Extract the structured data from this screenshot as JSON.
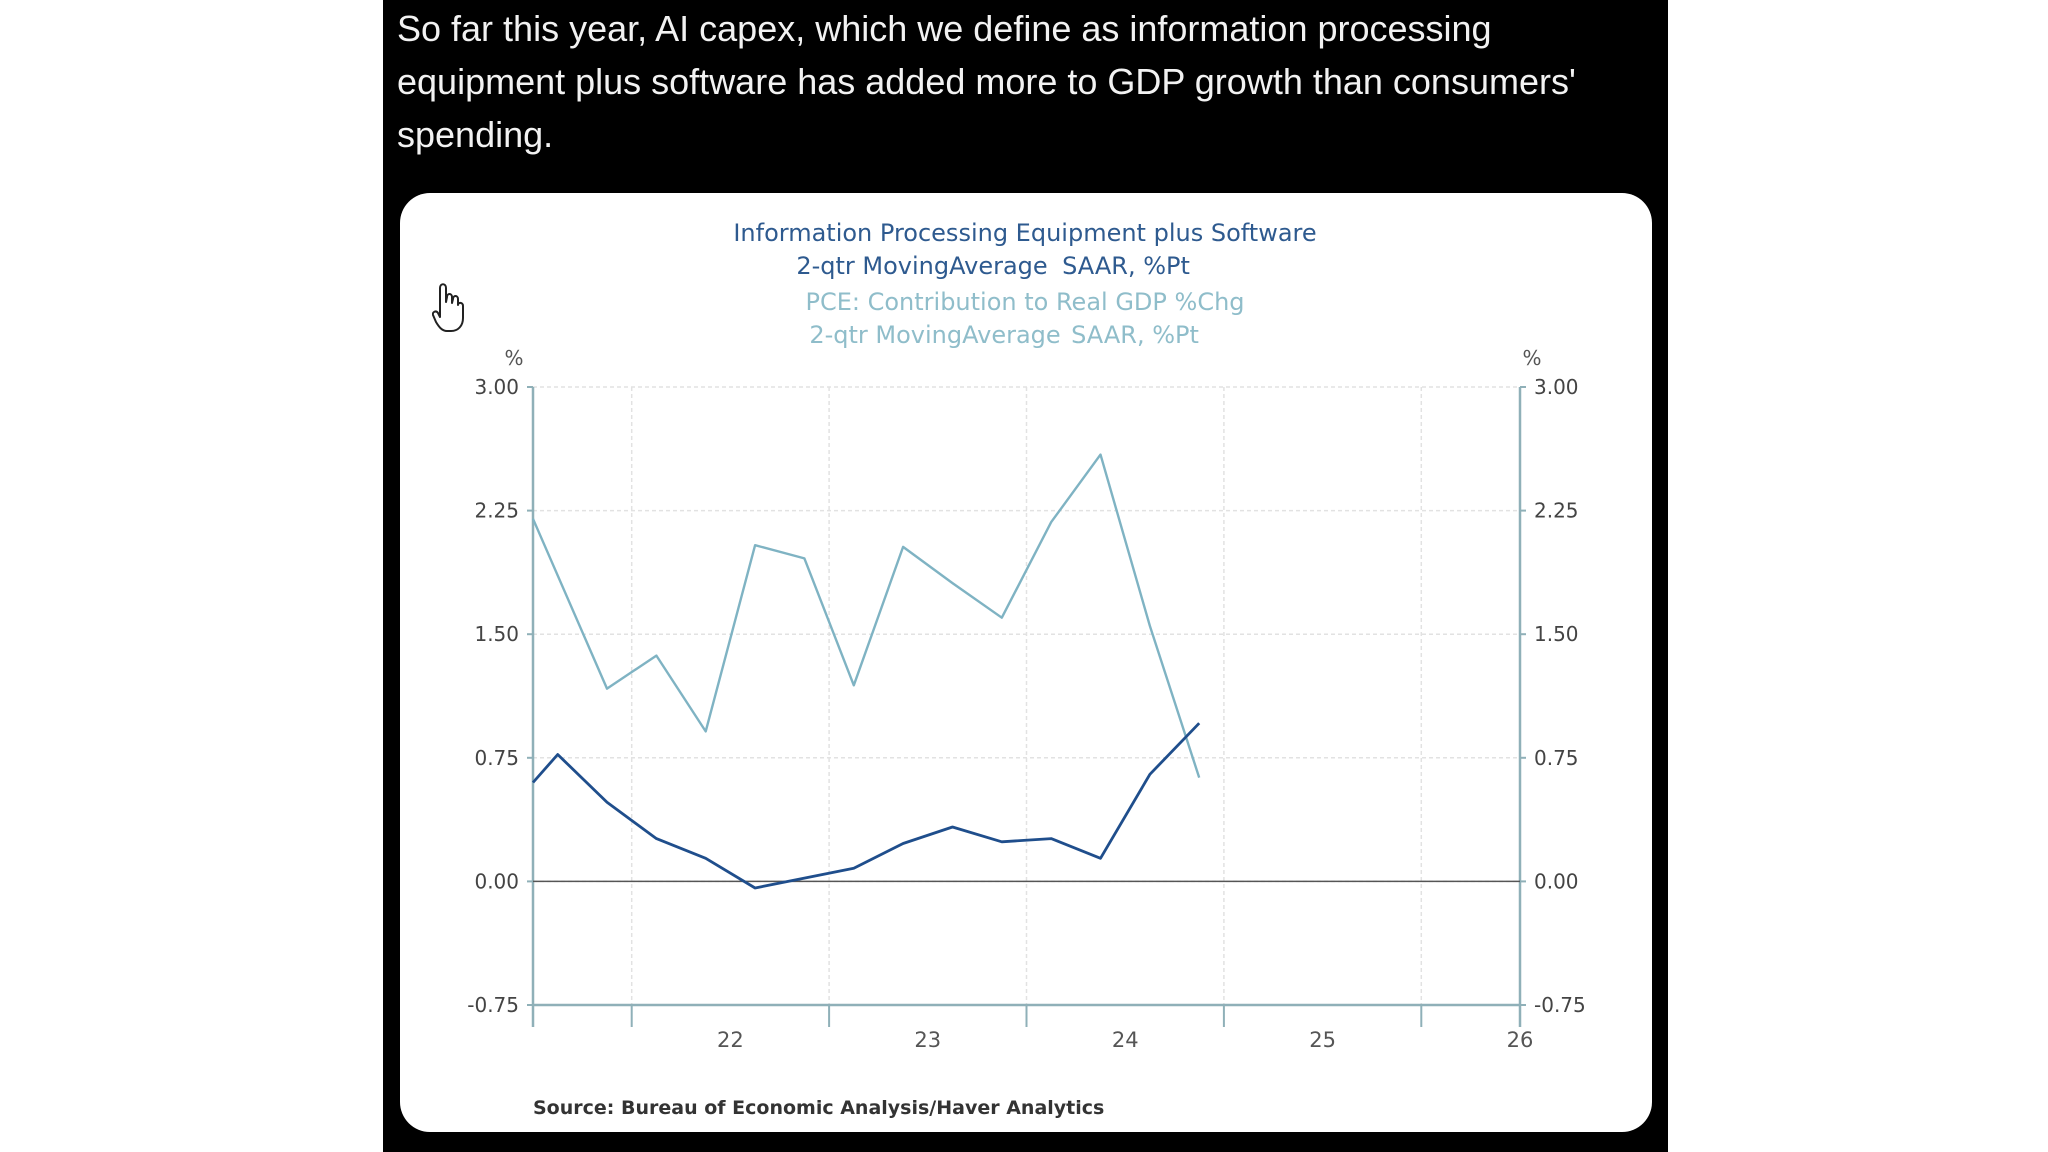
{
  "tweet": {
    "text": "So far this year, AI capex, which we define as information processing equipment plus software has added more to GDP growth than consumers' spending."
  },
  "colors": {
    "background": "#000000",
    "card": "#ffffff",
    "text": "#f2f2f2",
    "series_capex": "#1f4e8c",
    "series_pce": "#7fb3c3",
    "axis": "#8fb0b8"
  },
  "icons": {
    "cursor": "hand-pointer-icon"
  },
  "chart_data": {
    "type": "line",
    "title": "Information Processing Equipment plus Software",
    "title_sub_left": "2-qtr MovingAverage",
    "title_sub_right": "SAAR, %Pt",
    "title2": "PCE: Contribution to Real GDP %Chg",
    "title2_sub_left": "2-qtr MovingAverage",
    "title2_sub_right": "SAAR, %Pt",
    "ylabel_left": "%",
    "ylabel_right": "%",
    "source": "Source:  Bureau of Economic Analysis/Haver Analytics",
    "x_ticklabels": [
      "22",
      "23",
      "24",
      "25",
      "26"
    ],
    "xlim": [
      2021.5,
      2026.5
    ],
    "ylim": [
      -0.75,
      3.0
    ],
    "y_ticks": [
      3.0,
      2.25,
      1.5,
      0.75,
      0.0,
      -0.75
    ],
    "y_ticklabels": [
      "3.00",
      "2.25",
      "1.50",
      "0.75",
      "0.00",
      "-0.75"
    ],
    "grid": true,
    "series": [
      {
        "name": "Information Processing Equipment plus Software",
        "color": "#1f4e8c",
        "x": [
          2021.5,
          2021.625,
          2021.875,
          2022.125,
          2022.375,
          2022.625,
          2022.875,
          2023.125,
          2023.375,
          2023.625,
          2023.875,
          2024.125,
          2024.375,
          2024.625,
          2024.875
        ],
        "values": [
          0.6,
          0.77,
          0.48,
          0.26,
          0.14,
          -0.04,
          0.02,
          0.08,
          0.23,
          0.33,
          0.24,
          0.26,
          0.14,
          0.65,
          0.96
        ]
      },
      {
        "name": "PCE: Contribution to Real GDP %Chg",
        "color": "#7fb3c3",
        "x": [
          2021.5,
          2021.875,
          2022.125,
          2022.375,
          2022.625,
          2022.875,
          2023.125,
          2023.375,
          2023.625,
          2023.875,
          2024.125,
          2024.375,
          2024.625,
          2024.875
        ],
        "values": [
          2.2,
          1.17,
          1.37,
          0.91,
          2.04,
          1.96,
          1.19,
          2.03,
          1.81,
          1.6,
          2.18,
          2.59,
          1.55,
          0.63
        ]
      }
    ]
  }
}
